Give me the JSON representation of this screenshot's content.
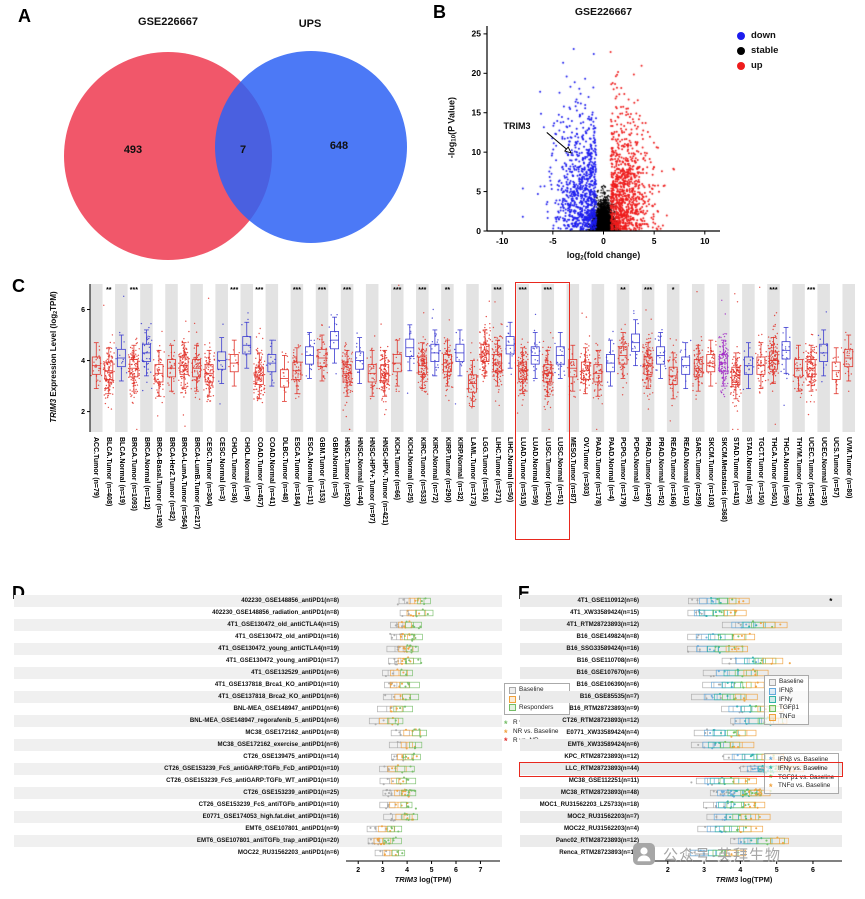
{
  "watermark": {
    "text": "公众号·英拜生物"
  },
  "chart_data": {
    "A": {
      "label": "A",
      "type": "venn",
      "left": {
        "label": "GSE226667",
        "value": "493",
        "color": "#f04e62"
      },
      "right": {
        "label": "UPS",
        "value": "648",
        "color": "#2d62f5"
      },
      "overlap": {
        "value": "7"
      }
    },
    "B": {
      "label": "B",
      "type": "scatter",
      "title": "GSE226667",
      "xlabel": {
        "pre": "log",
        "sub": "2",
        "post": "(fold change)"
      },
      "ylabel": {
        "pre": "-log",
        "sub": "10",
        "post": "(P Value)"
      },
      "xlim": [
        -11.5,
        11.5
      ],
      "ylim": [
        0,
        26
      ],
      "xticks": [
        -10,
        -5,
        0,
        5,
        10
      ],
      "yticks": [
        0,
        5,
        10,
        15,
        20,
        25
      ],
      "legend": [
        {
          "label": "down",
          "color": "#1c1cee"
        },
        {
          "label": "stable",
          "color": "#000000"
        },
        {
          "label": "up",
          "color": "#ee1c1c"
        }
      ],
      "annotation": {
        "text": "TRIM3",
        "label_x": -7.9,
        "label_y": 13.2,
        "arrow": [
          -5.6,
          12.5,
          -3.2,
          9.9
        ]
      },
      "points": {
        "seed": 11,
        "down_n": 850,
        "stable_n": 6000,
        "up_n": 950
      }
    },
    "C": {
      "label": "C",
      "type": "box-strip",
      "ylabel": {
        "gene": "TRIM3",
        "r1": " Expression Level (log",
        "sub": "2",
        "r2": "TPM)"
      },
      "ylim": [
        1.2,
        7
      ],
      "yticks": [
        2,
        4,
        6
      ],
      "seed": 5,
      "highlight_range": [
        34,
        37
      ],
      "colors": {
        "Tumor": "#e0342b",
        "Normal": "#3b3bd0",
        "Metastasis": "#a12cc7",
        "stripe": "#e3e3e3",
        "highlight": "#e8281e"
      },
      "categories": [
        {
          "name": "ACC.Tumor (n=79)",
          "type": "Tumor",
          "n": 79,
          "med": 3.8,
          "sig": ""
        },
        {
          "name": "BLCA.Tumor (n=408)",
          "type": "Tumor",
          "n": 408,
          "med": 3.6,
          "sig": "**"
        },
        {
          "name": "BLCA.Normal (n=19)",
          "type": "Normal",
          "n": 19,
          "med": 4.1,
          "sig": ""
        },
        {
          "name": "BRCA.Tumor (n=1093)",
          "type": "Tumor",
          "n": 1093,
          "med": 3.7,
          "sig": "***"
        },
        {
          "name": "BRCA.Normal (n=112)",
          "type": "Normal",
          "n": 112,
          "med": 4.3,
          "sig": ""
        },
        {
          "name": "BRCA-Basal.Tumor (n=190)",
          "type": "Tumor",
          "n": 190,
          "med": 3.5,
          "sig": ""
        },
        {
          "name": "BRCA-Her2.Tumor (n=82)",
          "type": "Tumor",
          "n": 82,
          "med": 3.7,
          "sig": ""
        },
        {
          "name": "BRCA-LumA.Tumor (n=564)",
          "type": "Tumor",
          "n": 564,
          "med": 3.8,
          "sig": ""
        },
        {
          "name": "BRCA-LumB.Tumor (n=217)",
          "type": "Tumor",
          "n": 217,
          "med": 3.7,
          "sig": ""
        },
        {
          "name": "CESC.Tumor (n=304)",
          "type": "Tumor",
          "n": 304,
          "med": 3.5,
          "sig": ""
        },
        {
          "name": "CESC.Normal (n=3)",
          "type": "Normal",
          "n": 3,
          "med": 4.0,
          "sig": ""
        },
        {
          "name": "CHOL.Tumor (n=36)",
          "type": "Tumor",
          "n": 36,
          "med": 3.9,
          "sig": "***"
        },
        {
          "name": "CHOL.Normal (n=9)",
          "type": "Normal",
          "n": 9,
          "med": 4.6,
          "sig": ""
        },
        {
          "name": "COAD.Tumor (n=457)",
          "type": "Tumor",
          "n": 457,
          "med": 3.4,
          "sig": "***"
        },
        {
          "name": "COAD.Normal (n=41)",
          "type": "Normal",
          "n": 41,
          "med": 3.9,
          "sig": ""
        },
        {
          "name": "DLBC.Tumor (n=48)",
          "type": "Tumor",
          "n": 48,
          "med": 3.3,
          "sig": ""
        },
        {
          "name": "ESCA.Tumor (n=184)",
          "type": "Tumor",
          "n": 184,
          "med": 3.6,
          "sig": "***"
        },
        {
          "name": "ESCA.Normal (n=11)",
          "type": "Normal",
          "n": 11,
          "med": 4.2,
          "sig": ""
        },
        {
          "name": "GBM.Tumor (n=153)",
          "type": "Tumor",
          "n": 153,
          "med": 4.1,
          "sig": "***"
        },
        {
          "name": "GBM.Normal (n=5)",
          "type": "Normal",
          "n": 5,
          "med": 4.8,
          "sig": ""
        },
        {
          "name": "HNSC.Tumor (n=520)",
          "type": "Tumor",
          "n": 520,
          "med": 3.5,
          "sig": "***"
        },
        {
          "name": "HNSC.Normal (n=44)",
          "type": "Normal",
          "n": 44,
          "med": 4.0,
          "sig": ""
        },
        {
          "name": "HNSC-HPV+.Tumor (n=97)",
          "type": "Tumor",
          "n": 97,
          "med": 3.5,
          "sig": ""
        },
        {
          "name": "HNSC-HPV-.Tumor (n=421)",
          "type": "Tumor",
          "n": 421,
          "med": 3.5,
          "sig": ""
        },
        {
          "name": "KICH.Tumor (n=66)",
          "type": "Tumor",
          "n": 66,
          "med": 3.9,
          "sig": "***"
        },
        {
          "name": "KICH.Normal (n=25)",
          "type": "Normal",
          "n": 25,
          "med": 4.5,
          "sig": ""
        },
        {
          "name": "KIRC.Tumor (n=533)",
          "type": "Tumor",
          "n": 533,
          "med": 3.8,
          "sig": "***"
        },
        {
          "name": "KIRC.Normal (n=72)",
          "type": "Normal",
          "n": 72,
          "med": 4.3,
          "sig": ""
        },
        {
          "name": "KIRP.Tumor (n=290)",
          "type": "Tumor",
          "n": 290,
          "med": 3.9,
          "sig": "**"
        },
        {
          "name": "KIRP.Normal (n=32)",
          "type": "Normal",
          "n": 32,
          "med": 4.3,
          "sig": ""
        },
        {
          "name": "LAML.Tumor (n=173)",
          "type": "Tumor",
          "n": 173,
          "med": 3.1,
          "sig": ""
        },
        {
          "name": "LGG.Tumor (n=516)",
          "type": "Tumor",
          "n": 516,
          "med": 4.3,
          "sig": ""
        },
        {
          "name": "LIHC.Tumor (n=371)",
          "type": "Tumor",
          "n": 371,
          "med": 3.9,
          "sig": "***"
        },
        {
          "name": "LIHC.Normal (n=50)",
          "type": "Normal",
          "n": 50,
          "med": 4.6,
          "sig": ""
        },
        {
          "name": "LUAD.Tumor (n=515)",
          "type": "Tumor",
          "n": 515,
          "med": 3.6,
          "sig": "***"
        },
        {
          "name": "LUAD.Normal (n=59)",
          "type": "Normal",
          "n": 59,
          "med": 4.2,
          "sig": ""
        },
        {
          "name": "LUSC.Tumor (n=501)",
          "type": "Tumor",
          "n": 501,
          "med": 3.5,
          "sig": "***"
        },
        {
          "name": "LUSC.Normal (n=51)",
          "type": "Normal",
          "n": 51,
          "med": 4.2,
          "sig": ""
        },
        {
          "name": "MESO.Tumor (n=87)",
          "type": "Tumor",
          "n": 87,
          "med": 3.7,
          "sig": ""
        },
        {
          "name": "OV.Tumor (n=303)",
          "type": "Tumor",
          "n": 303,
          "med": 3.6,
          "sig": ""
        },
        {
          "name": "PAAD.Tumor (n=178)",
          "type": "Tumor",
          "n": 178,
          "med": 3.5,
          "sig": ""
        },
        {
          "name": "PAAD.Normal (n=4)",
          "type": "Normal",
          "n": 4,
          "med": 3.9,
          "sig": ""
        },
        {
          "name": "PCPG.Tumor (n=179)",
          "type": "Tumor",
          "n": 179,
          "med": 4.2,
          "sig": "**"
        },
        {
          "name": "PCPG.Normal (n=3)",
          "type": "Normal",
          "n": 3,
          "med": 4.7,
          "sig": ""
        },
        {
          "name": "PRAD.Tumor (n=497)",
          "type": "Tumor",
          "n": 497,
          "med": 3.8,
          "sig": "***"
        },
        {
          "name": "PRAD.Normal (n=52)",
          "type": "Normal",
          "n": 52,
          "med": 4.2,
          "sig": ""
        },
        {
          "name": "READ.Tumor (n=166)",
          "type": "Tumor",
          "n": 166,
          "med": 3.4,
          "sig": "*"
        },
        {
          "name": "READ.Normal (n=10)",
          "type": "Normal",
          "n": 10,
          "med": 3.8,
          "sig": ""
        },
        {
          "name": "SARC.Tumor (n=259)",
          "type": "Tumor",
          "n": 259,
          "med": 3.7,
          "sig": ""
        },
        {
          "name": "SKCM.Tumor (n=103)",
          "type": "Tumor",
          "n": 103,
          "med": 3.9,
          "sig": ""
        },
        {
          "name": "SKCM.Metastasis (n=368)",
          "type": "Metastasis",
          "n": 368,
          "med": 3.9,
          "sig": ""
        },
        {
          "name": "STAD.Tumor (n=415)",
          "type": "Tumor",
          "n": 415,
          "med": 3.4,
          "sig": ""
        },
        {
          "name": "STAD.Normal (n=35)",
          "type": "Normal",
          "n": 35,
          "med": 3.8,
          "sig": ""
        },
        {
          "name": "TGCT.Tumor (n=150)",
          "type": "Tumor",
          "n": 150,
          "med": 3.8,
          "sig": ""
        },
        {
          "name": "THCA.Tumor (n=501)",
          "type": "Tumor",
          "n": 501,
          "med": 4.0,
          "sig": "***"
        },
        {
          "name": "THCA.Normal (n=59)",
          "type": "Normal",
          "n": 59,
          "med": 4.4,
          "sig": ""
        },
        {
          "name": "THYM.Tumor (n=120)",
          "type": "Tumor",
          "n": 120,
          "med": 3.7,
          "sig": ""
        },
        {
          "name": "UCEC.Tumor (n=545)",
          "type": "Tumor",
          "n": 545,
          "med": 3.7,
          "sig": "***"
        },
        {
          "name": "UCEC.Normal (n=35)",
          "type": "Normal",
          "n": 35,
          "med": 4.3,
          "sig": ""
        },
        {
          "name": "UCS.Tumor (n=57)",
          "type": "Tumor",
          "n": 57,
          "med": 3.6,
          "sig": ""
        },
        {
          "name": "UVM.Tumor (n=80)",
          "type": "Tumor",
          "n": 80,
          "med": 4.1,
          "sig": ""
        }
      ]
    },
    "D": {
      "label": "D",
      "type": "strip-h",
      "xlabel": {
        "gene": "TRIM3",
        "rest": " log(TPM)"
      },
      "xlim": [
        1.5,
        7.8
      ],
      "xticks": [
        2,
        3,
        4,
        5,
        6,
        7
      ],
      "seed": 23,
      "groups": [
        {
          "key": "baseline",
          "label": "Baseline",
          "color": "#a8a8a8",
          "offset": -0.35
        },
        {
          "key": "nr",
          "label": "Non-responders",
          "color": "#f0a13c",
          "offset": 0.05
        },
        {
          "key": "r",
          "label": "Responders",
          "color": "#74bd66",
          "offset": 0.35
        }
      ],
      "stat_legend": [
        {
          "star": "*",
          "label": "R vs. Baseline",
          "color": "#74bd66"
        },
        {
          "star": "*",
          "label": "NR vs. Baseline",
          "color": "#f0a13c"
        },
        {
          "star": "*",
          "label": "R vs. NR",
          "color": "#e03030"
        }
      ],
      "rows": [
        {
          "label": "402230_GSE148856_antiPD1(n=8)",
          "n": 8,
          "x": 4.3
        },
        {
          "label": "402230_GSE148856_radiation_antiPD1(n=8)",
          "n": 8,
          "x": 4.35
        },
        {
          "label": "4T1_GSE130472_old_antiCTLA4(n=15)",
          "n": 15,
          "x": 3.9
        },
        {
          "label": "4T1_GSE130472_old_antiPD1(n=16)",
          "n": 16,
          "x": 3.95
        },
        {
          "label": "4T1_GSE130472_young_antiCTLA4(n=19)",
          "n": 19,
          "x": 3.85
        },
        {
          "label": "4T1_GSE130472_young_antiPD1(n=17)",
          "n": 17,
          "x": 3.9
        },
        {
          "label": "4T1_GSE132529_antiPD1(n=6)",
          "n": 6,
          "x": 3.6
        },
        {
          "label": "4T1_GSE137818_Brca1_KO_antiPD1(n=10)",
          "n": 10,
          "x": 3.7
        },
        {
          "label": "4T1_GSE137818_Brca2_KO_antiPD1(n=6)",
          "n": 6,
          "x": 3.75
        },
        {
          "label": "BNL-MEA_GSE148947_antiPD1(n=6)",
          "n": 6,
          "x": 3.5
        },
        {
          "label": "BNL-MEA_GSE148947_regorafenib_5_antiPD1(n=6)",
          "n": 6,
          "x": 3.2
        },
        {
          "label": "MC38_GSE172162_antiPD1(n=8)",
          "n": 8,
          "x": 4.1
        },
        {
          "label": "MC38_GSE172162_exercise_antiPD1(n=6)",
          "n": 6,
          "x": 4.0
        },
        {
          "label": "CT26_GSE139475_antiPD1(n=14)",
          "n": 14,
          "x": 3.9
        },
        {
          "label": "CT26_GSE153239_FcS_antiGARP:TGFb_FcD_antiPD1(n=10)",
          "n": 10,
          "x": 3.6
        },
        {
          "label": "CT26_GSE153239_FcS_antiGARP:TGFb_WT_antiPD1(n=10)",
          "n": 10,
          "x": 3.65
        },
        {
          "label": "CT26_GSE153239_antiPD1(n=25)",
          "n": 25,
          "x": 3.7
        },
        {
          "label": "CT26_GSE153239_FcS_antiTGFb_antiPD1(n=10)",
          "n": 10,
          "x": 3.6
        },
        {
          "label": "E0771_GSE174053_high.fat.diet_antiPD1(n=16)",
          "n": 16,
          "x": 3.8
        },
        {
          "label": "EMT6_GSE107801_antiPD1(n=9)",
          "n": 9,
          "x": 3.1
        },
        {
          "label": "EMT6_GSE107801_antiTGFb_trap_antiPD1(n=20)",
          "n": 20,
          "x": 3.0
        },
        {
          "label": "MOC22_RU31562203_antiPD1(n=6)",
          "n": 6,
          "x": 3.3
        }
      ]
    },
    "E": {
      "label": "E",
      "type": "strip-h",
      "xlabel": {
        "gene": "TRIM3",
        "rest": " log(TPM)"
      },
      "xlim": [
        1.4,
        6.8
      ],
      "xticks": [
        2,
        3,
        4,
        5,
        6
      ],
      "seed": 29,
      "highlight_row": 14,
      "groups": [
        {
          "key": "baseline",
          "label": "Baseline",
          "color": "#a8a8a8",
          "offset": -0.55
        },
        {
          "key": "ifnb",
          "label": "IFNβ",
          "color": "#64a8dc",
          "offset": -0.27
        },
        {
          "key": "ifng",
          "label": "IFNγ",
          "color": "#2fb3a9",
          "offset": 0.0
        },
        {
          "key": "tgfb1",
          "label": "TGFβ1",
          "color": "#6cbf5a",
          "offset": 0.27
        },
        {
          "key": "tnfa",
          "label": "TNFα",
          "color": "#f0a13c",
          "offset": 0.55
        }
      ],
      "stat_legend": [
        {
          "star": "*",
          "label": "IFNβ vs. Baseline",
          "color": "#64a8dc"
        },
        {
          "star": "*",
          "label": "IFNγ vs. Baseline",
          "color": "#2fb3a9"
        },
        {
          "star": "*",
          "label": "TGFβ1 vs. Baseline",
          "color": "#6cbf5a"
        },
        {
          "star": "*",
          "label": "TNFα vs. Baseline",
          "color": "#f0a13c"
        }
      ],
      "rows": [
        {
          "label": "4T1_GSE110912(n=6)",
          "n": 6,
          "x": 3.4,
          "sig": {
            "text": "*",
            "color": "#f2837f",
            "x": 6.45
          }
        },
        {
          "label": "4T1_XW33589424(n=15)",
          "n": 15,
          "x": 3.3
        },
        {
          "label": "4T1_RTM28723893(n=12)",
          "n": 12,
          "x": 4.4
        },
        {
          "label": "B16_GSE149824(n=8)",
          "n": 8,
          "x": 3.5
        },
        {
          "label": "B16_SSG33589424(n=16)",
          "n": 16,
          "x": 3.4
        },
        {
          "label": "B16_GSE110708(n=6)",
          "n": 6,
          "x": 4.4
        },
        {
          "label": "B16_GSE107670(n=6)",
          "n": 6,
          "x": 3.9
        },
        {
          "label": "B16_GSE106390(n=6)",
          "n": 6,
          "x": 3.8
        },
        {
          "label": "B16_GSE85535(n=7)",
          "n": 7,
          "x": 3.6
        },
        {
          "label": "B16_RTM28723893(n=9)",
          "n": 9,
          "x": 4.3,
          "sig": {
            "text": "*",
            "color": "#64a8dc",
            "x": 5.3
          }
        },
        {
          "label": "CT26_RTM28723893(n=12)",
          "n": 12,
          "x": 4.5
        },
        {
          "label": "E0771_XW33589424(n=4)",
          "n": 4,
          "x": 3.6
        },
        {
          "label": "EMT6_XW33589424(n=6)",
          "n": 6,
          "x": 3.5
        },
        {
          "label": "KPC_RTM28723893(n=12)",
          "n": 12,
          "x": 4.4
        },
        {
          "label": "LLC_RTM28723893(n=44)",
          "n": 44,
          "x": 4.8,
          "sig": {
            "text": "***",
            "color": "#2fb3a9",
            "x": 6.0
          }
        },
        {
          "label": "MC38_GSE112251(n=11)",
          "n": 11,
          "x": 3.6
        },
        {
          "label": "MC38_RTM28723893(n=48)",
          "n": 48,
          "x": 4.0
        },
        {
          "label": "MOC1_RU31562203_LZ5733(n=18)",
          "n": 18,
          "x": 3.8
        },
        {
          "label": "MOC2_RU31562203(n=7)",
          "n": 7,
          "x": 3.9
        },
        {
          "label": "MOC22_RU31562203(n=4)",
          "n": 4,
          "x": 3.7
        },
        {
          "label": "Panc02_RTM28723893(n=12)",
          "n": 12,
          "x": 4.5
        },
        {
          "label": "Renca_RTM28723893(n=11)",
          "n": 11,
          "x": 3.3
        }
      ]
    }
  }
}
